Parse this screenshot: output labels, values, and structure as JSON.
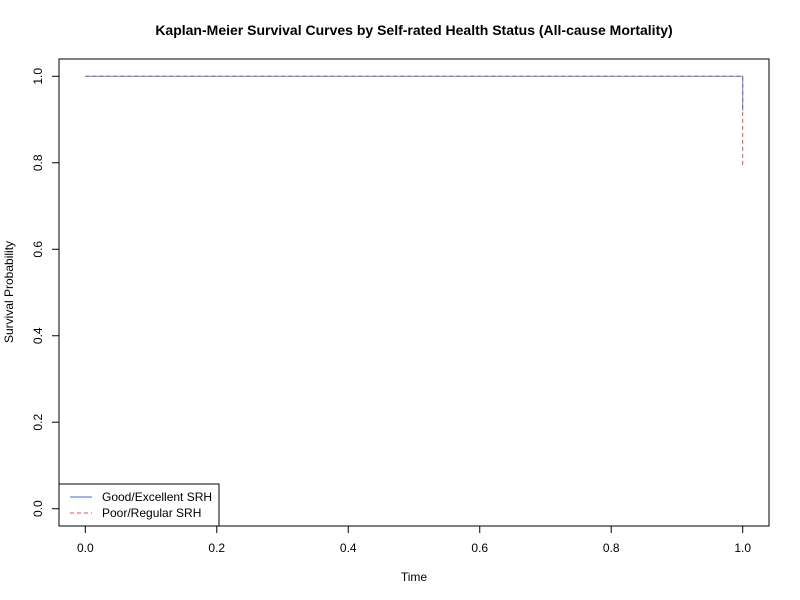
{
  "chart_data": {
    "type": "line",
    "title": "Kaplan-Meier Survival Curves by Self-rated Health Status (All-cause Mortality)",
    "xlabel": "Time",
    "ylabel": "Survival Probability",
    "xlim": [
      -0.04,
      1.04
    ],
    "ylim": [
      -0.04,
      1.04
    ],
    "x_ticks": [
      "0.0",
      "0.2",
      "0.4",
      "0.6",
      "0.8",
      "1.0"
    ],
    "y_ticks": [
      "0.0",
      "0.2",
      "0.4",
      "0.6",
      "0.8",
      "1.0"
    ],
    "grid": false,
    "legend_position": "bottom-left",
    "series": [
      {
        "name": "Good/Excellent SRH",
        "color": "#4169E1",
        "dash": "solid",
        "x": [
          0.0,
          1.0,
          1.0
        ],
        "y": [
          1.0,
          1.0,
          0.92
        ]
      },
      {
        "name": "Poor/Regular SRH",
        "color": "#E05050",
        "dash": "dashed",
        "x": [
          0.0,
          1.0,
          1.0
        ],
        "y": [
          1.0,
          1.0,
          0.795
        ]
      }
    ]
  }
}
